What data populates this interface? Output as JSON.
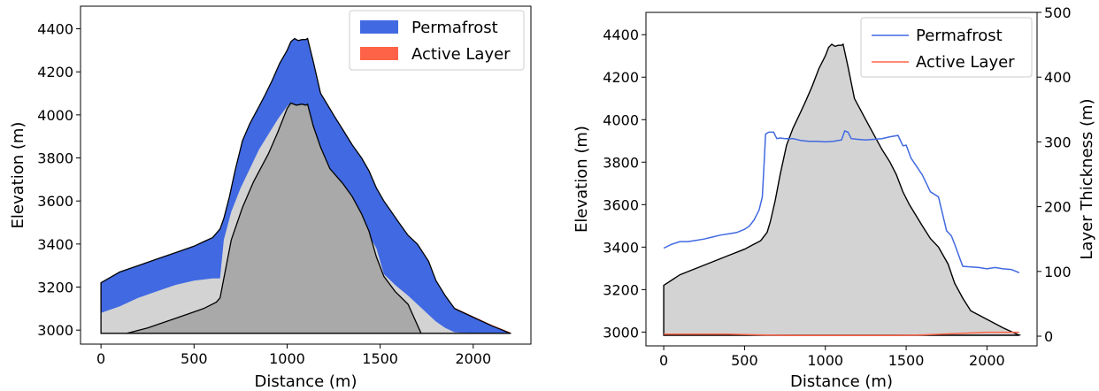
{
  "chart_data": [
    {
      "type": "area",
      "xlabel": "Distance (m)",
      "ylabel": "Elevation (m)",
      "xlim": [
        -110,
        2310
      ],
      "ylim": [
        2935,
        4505
      ],
      "xticks": [
        0,
        500,
        1000,
        1500,
        2000
      ],
      "yticks": [
        3000,
        3200,
        3400,
        3600,
        3800,
        4000,
        4200,
        4400
      ],
      "legend_position": "top-right",
      "legend": [
        {
          "name": "Permafrost",
          "color": "#4169e1"
        },
        {
          "name": "Active Layer",
          "color": "#ff6347"
        }
      ],
      "colors": {
        "permafrost": "#4169e1",
        "active_layer": "#ff6347",
        "ground": "#d3d3d3",
        "bedrock": "#a9a9a9"
      },
      "surface": {
        "x": [
          0,
          100,
          200,
          300,
          400,
          500,
          550,
          600,
          620,
          640,
          660,
          690,
          720,
          760,
          800,
          850,
          880,
          920,
          960,
          1000,
          1020,
          1040,
          1060,
          1080,
          1100,
          1110,
          1140,
          1180,
          1250,
          1300,
          1350,
          1400,
          1440,
          1480,
          1520,
          1560,
          1600,
          1650,
          1700,
          1760,
          1800,
          1850,
          1900,
          2000,
          2100,
          2200
        ],
        "y": [
          3220,
          3270,
          3300,
          3330,
          3360,
          3390,
          3410,
          3430,
          3450,
          3470,
          3520,
          3620,
          3740,
          3880,
          3960,
          4040,
          4090,
          4160,
          4240,
          4300,
          4340,
          4355,
          4345,
          4350,
          4350,
          4355,
          4250,
          4100,
          4000,
          3930,
          3860,
          3800,
          3740,
          3660,
          3600,
          3550,
          3500,
          3440,
          3400,
          3320,
          3230,
          3160,
          3100,
          3060,
          3020,
          2985
        ]
      },
      "permafrost_base": {
        "x": [
          0,
          100,
          200,
          300,
          400,
          500,
          600,
          640,
          660,
          700,
          750,
          800,
          850,
          900,
          950,
          1000,
          1020,
          1050,
          1080,
          1100,
          1110,
          1130,
          1160,
          1200,
          1250,
          1300,
          1350,
          1400,
          1440,
          1480,
          1520,
          1580,
          1650,
          1700,
          1750,
          1800,
          1850,
          1900,
          2000,
          2100,
          2200
        ],
        "y": [
          3080,
          3110,
          3150,
          3180,
          3210,
          3230,
          3240,
          3240,
          3420,
          3550,
          3660,
          3750,
          3840,
          3910,
          3980,
          4040,
          4055,
          4045,
          4050,
          4045,
          4050,
          3950,
          3850,
          3760,
          3700,
          3650,
          3580,
          3520,
          3440,
          3380,
          3260,
          3210,
          3160,
          3120,
          3080,
          3040,
          3010,
          2990,
          2985,
          2985,
          2985
        ]
      },
      "bedrock_surface": {
        "x": [
          140,
          250,
          350,
          450,
          550,
          620,
          640,
          700,
          760,
          820,
          900,
          950,
          1000,
          1020,
          1050,
          1080,
          1100,
          1110,
          1140,
          1180,
          1230,
          1300,
          1350,
          1400,
          1440,
          1480,
          1520,
          1580,
          1650,
          1720
        ],
        "y": [
          2985,
          3010,
          3040,
          3070,
          3100,
          3130,
          3150,
          3420,
          3570,
          3690,
          3820,
          3920,
          4030,
          4055,
          4045,
          4050,
          4045,
          4050,
          3950,
          3850,
          3750,
          3680,
          3620,
          3540,
          3460,
          3340,
          3250,
          3180,
          3120,
          2985
        ]
      }
    },
    {
      "type": "line",
      "xlabel": "Distance (m)",
      "ylabel": "Elevation (m)",
      "y2label": "Layer Thickness (m)",
      "xlim": [
        -110,
        2310
      ],
      "ylim": [
        2935,
        4505
      ],
      "y2lim": [
        -15,
        500
      ],
      "xticks": [
        0,
        500,
        1000,
        1500,
        2000
      ],
      "yticks": [
        3000,
        3200,
        3400,
        3600,
        3800,
        4000,
        4200,
        4400
      ],
      "y2ticks": [
        0,
        100,
        200,
        300,
        400,
        500
      ],
      "legend_position": "top-right",
      "colors": {
        "ground": "#d3d3d3"
      },
      "series": [
        {
          "name": "Permafrost",
          "color": "#4169e1",
          "x": [
            0,
            50,
            100,
            150,
            200,
            250,
            300,
            350,
            400,
            450,
            500,
            530,
            560,
            590,
            610,
            620,
            630,
            650,
            680,
            700,
            720,
            750,
            800,
            850,
            900,
            950,
            1000,
            1050,
            1100,
            1120,
            1140,
            1160,
            1200,
            1250,
            1300,
            1350,
            1400,
            1450,
            1480,
            1500,
            1530,
            1560,
            1600,
            1650,
            1700,
            1750,
            1780,
            1800,
            1850,
            1900,
            1950,
            2000,
            2050,
            2100,
            2150,
            2200
          ],
          "y": [
            136,
            142,
            146,
            146,
            148,
            150,
            153,
            156,
            158,
            160,
            165,
            170,
            180,
            195,
            215,
            260,
            312,
            315,
            315,
            305,
            306,
            305,
            305,
            302,
            301,
            301,
            300,
            301,
            303,
            317,
            315,
            305,
            304,
            303,
            304,
            305,
            308,
            310,
            294,
            295,
            275,
            264,
            249,
            223,
            215,
            163,
            155,
            142,
            108,
            107,
            106,
            104,
            106,
            104,
            103,
            98
          ]
        },
        {
          "name": "Active Layer",
          "color": "#ff6347",
          "x": [
            0,
            200,
            400,
            600,
            800,
            1000,
            1200,
            1400,
            1600,
            1800,
            2000,
            2100,
            2200
          ],
          "y": [
            3,
            3,
            3,
            2,
            1,
            1,
            1,
            1,
            2,
            4,
            6,
            6,
            6
          ]
        }
      ],
      "surface": {
        "x": [
          0,
          100,
          200,
          300,
          400,
          500,
          550,
          600,
          620,
          640,
          660,
          690,
          720,
          760,
          800,
          850,
          880,
          920,
          960,
          1000,
          1020,
          1040,
          1060,
          1080,
          1100,
          1110,
          1140,
          1180,
          1250,
          1300,
          1350,
          1400,
          1440,
          1480,
          1520,
          1560,
          1600,
          1650,
          1700,
          1760,
          1800,
          1850,
          1900,
          2000,
          2100,
          2200
        ],
        "y": [
          3220,
          3270,
          3300,
          3330,
          3360,
          3390,
          3410,
          3430,
          3450,
          3470,
          3520,
          3620,
          3740,
          3880,
          3960,
          4040,
          4090,
          4160,
          4240,
          4300,
          4340,
          4355,
          4345,
          4350,
          4350,
          4355,
          4250,
          4100,
          4000,
          3930,
          3860,
          3800,
          3740,
          3660,
          3600,
          3550,
          3500,
          3440,
          3400,
          3320,
          3230,
          3160,
          3100,
          3060,
          3020,
          2985
        ]
      }
    }
  ]
}
